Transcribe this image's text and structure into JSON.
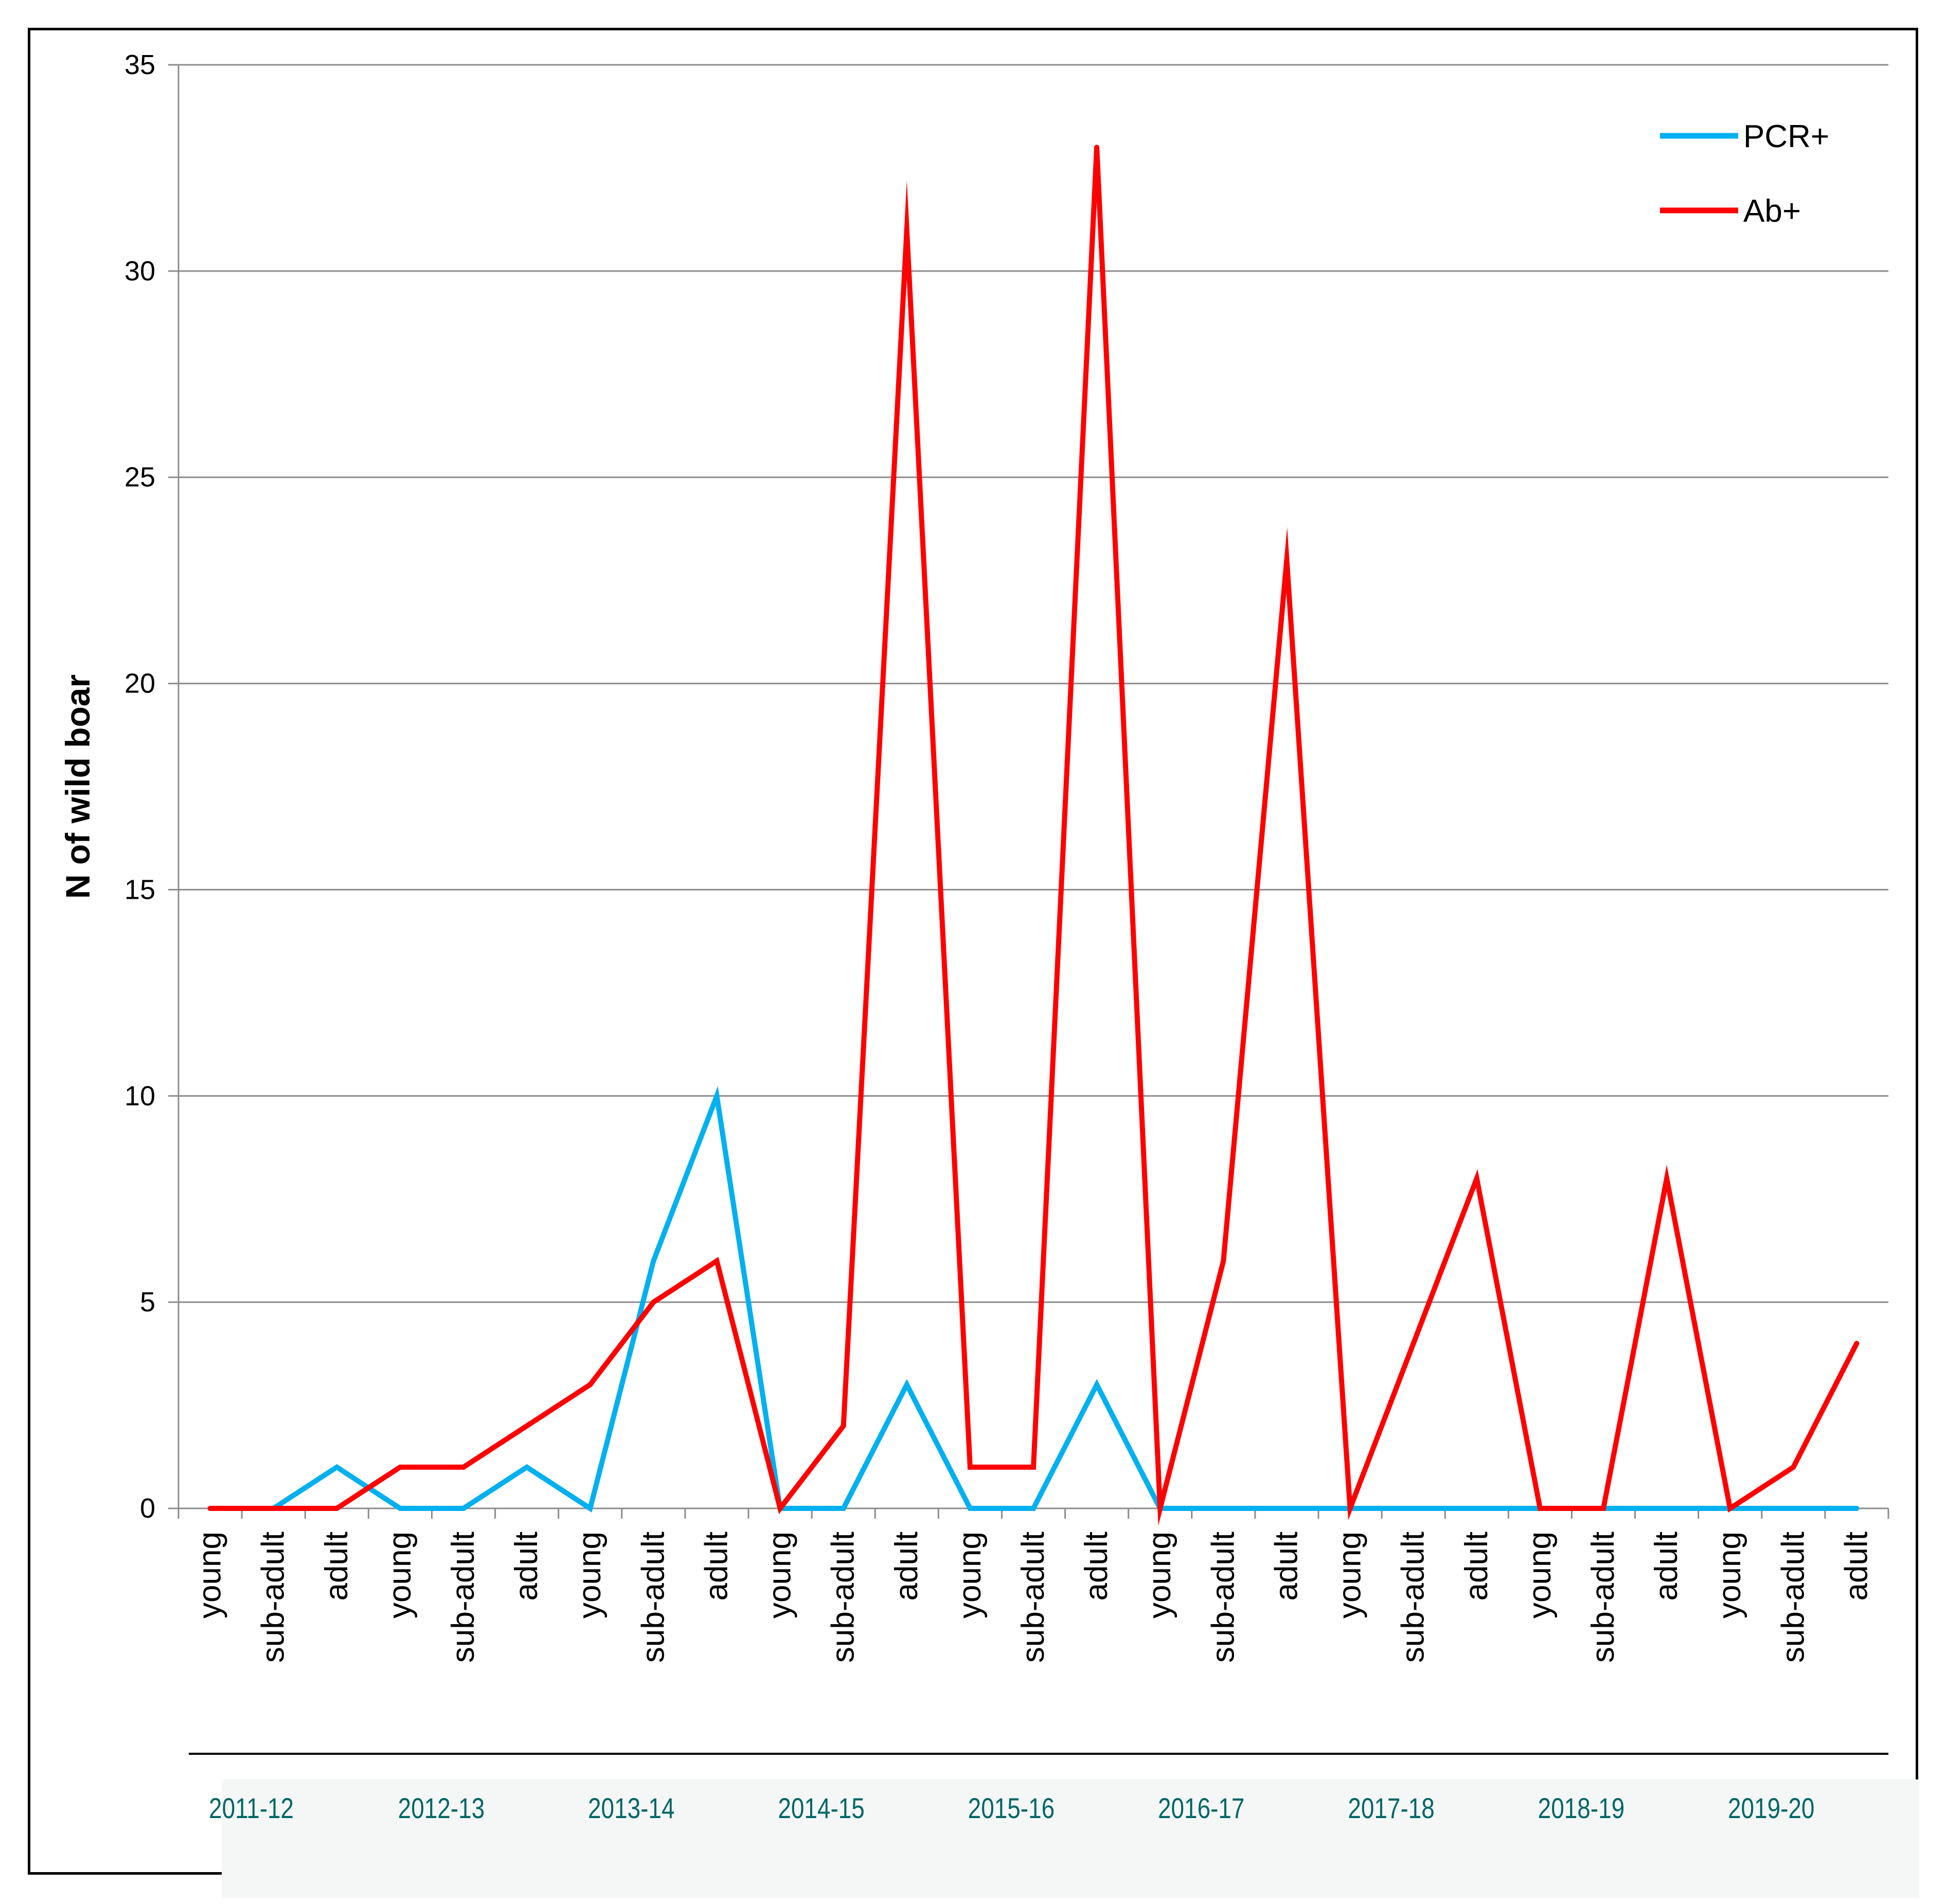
{
  "chart_data": {
    "type": "line",
    "ylabel": "N of wild boar",
    "ylim": [
      0,
      35
    ],
    "yticks": [
      0,
      5,
      10,
      15,
      20,
      25,
      30,
      35
    ],
    "grid": true,
    "legend_position": "top-right",
    "age_groups": [
      "young",
      "sub-adult",
      "adult"
    ],
    "periods": [
      "2011-12",
      "2012-13",
      "2013-14",
      "2014-15",
      "2015-16",
      "2016-17",
      "2017-18",
      "2018-19",
      "2019-20"
    ],
    "categories": [
      "young",
      "sub-adult",
      "adult",
      "young",
      "sub-adult",
      "adult",
      "young",
      "sub-adult",
      "adult",
      "young",
      "sub-adult",
      "adult",
      "young",
      "sub-adult",
      "adult",
      "young",
      "sub-adult",
      "adult",
      "young",
      "sub-adult",
      "adult",
      "young",
      "sub-adult",
      "adult",
      "young",
      "sub-adult",
      "adult"
    ],
    "series": [
      {
        "name": "PCR+",
        "color": "#00b0f0",
        "values": [
          0,
          0,
          1,
          0,
          0,
          1,
          0,
          6,
          10,
          0,
          0,
          3,
          0,
          0,
          3,
          0,
          0,
          0,
          0,
          0,
          0,
          0,
          0,
          0,
          0,
          0,
          0
        ]
      },
      {
        "name": "Ab+",
        "color": "#ff0000",
        "values": [
          0,
          0,
          0,
          1,
          1,
          2,
          3,
          5,
          6,
          0,
          2,
          31,
          1,
          1,
          33,
          0,
          6,
          23,
          0,
          4,
          8,
          0,
          0,
          8,
          0,
          1,
          4
        ]
      }
    ]
  }
}
